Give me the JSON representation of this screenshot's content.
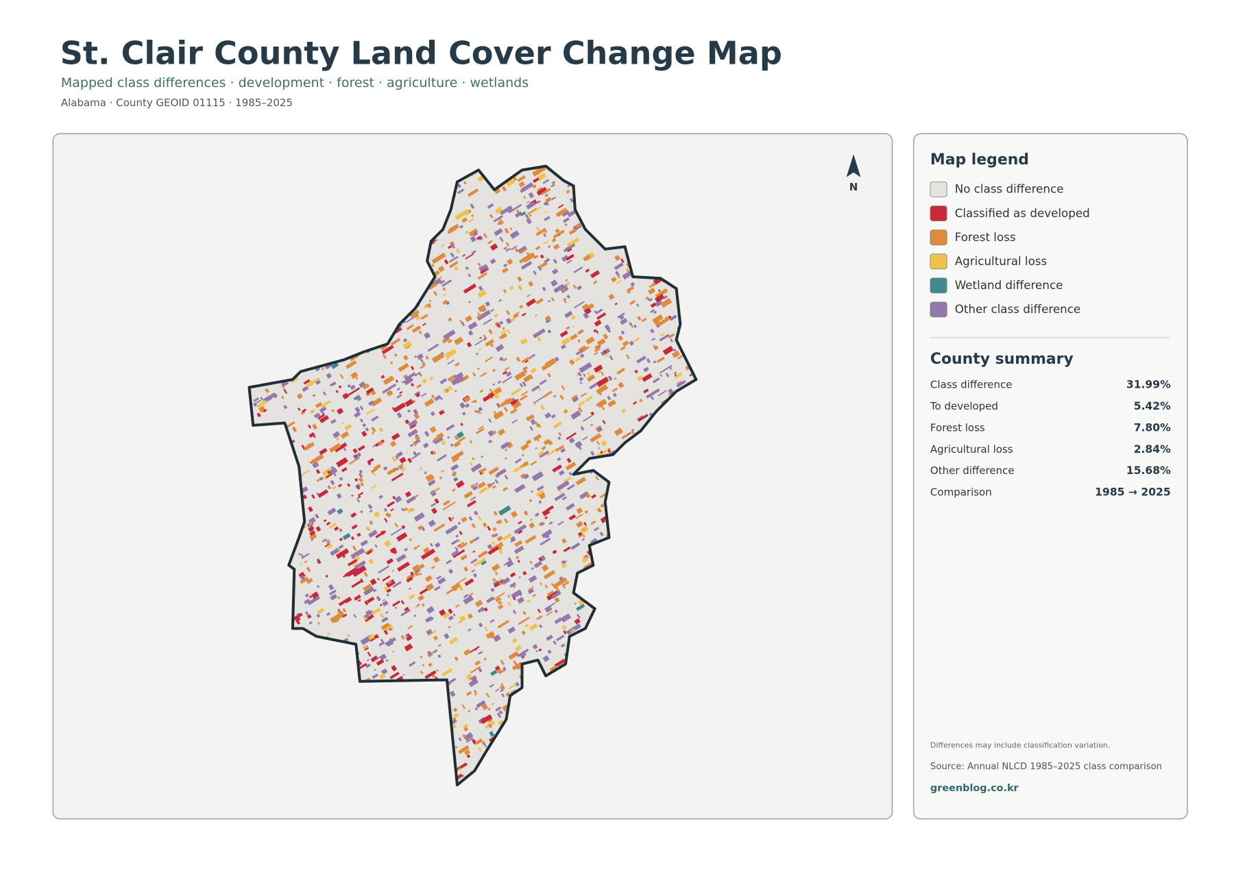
{
  "header": {
    "title": "St. Clair County Land Cover Change Map",
    "subtitle": "Mapped class differences · development · forest · agriculture · wetlands",
    "meta": "Alabama · County GEOID 01115 · 1985–2025"
  },
  "map": {
    "north_label": "N"
  },
  "legend": {
    "title": "Map legend",
    "items": [
      {
        "label": "No class difference",
        "color": "#e4e3df"
      },
      {
        "label": "Classified as developed",
        "color": "#c8283a"
      },
      {
        "label": "Forest loss",
        "color": "#e08a3c"
      },
      {
        "label": "Agricultural loss",
        "color": "#f0c24a"
      },
      {
        "label": "Wetland difference",
        "color": "#3f8a8f"
      },
      {
        "label": "Other class difference",
        "color": "#9278ac"
      }
    ]
  },
  "summary": {
    "title": "County summary",
    "rows": [
      [
        "Class difference",
        "31.99%"
      ],
      [
        "To developed",
        "5.42%"
      ],
      [
        "Forest loss",
        "7.80%"
      ],
      [
        "Agricultural loss",
        "2.84%"
      ],
      [
        "Other difference",
        "15.68%"
      ],
      [
        "Comparison",
        "1985 → 2025"
      ]
    ]
  },
  "notes": {
    "caveat": "Differences may include classification variation.",
    "source": "Source: Annual NLCD 1985–2025 class comparison",
    "site": "greenblog.co.kr"
  }
}
